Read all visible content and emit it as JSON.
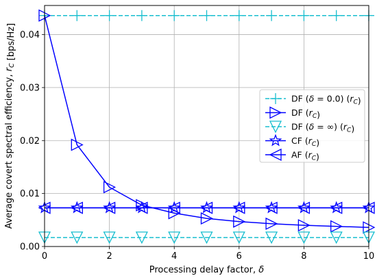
{
  "chart_data": {
    "type": "line",
    "xlabel": "Processing delay factor, δ",
    "ylabel": "Average covert spectral efficiency, r_C [bps/Hz]",
    "xlim": [
      0,
      10
    ],
    "ylim": [
      0,
      0.0455
    ],
    "xticks": [
      0,
      2,
      4,
      6,
      8,
      10
    ],
    "yticks": [
      0.0,
      0.01,
      0.02,
      0.03,
      0.04
    ],
    "ytick_labels": [
      "0.00",
      "0.01",
      "0.02",
      "0.03",
      "0.04"
    ],
    "grid": true,
    "legend_position": "center-right",
    "series": [
      {
        "name": "DF (δ = 0.0) (r_C)",
        "color": "#17becf",
        "line": "dashed",
        "marker": "plus",
        "x": [
          0,
          1,
          2,
          3,
          4,
          5,
          6,
          7,
          8,
          9,
          10
        ],
        "y": [
          0.0436,
          0.0436,
          0.0436,
          0.0436,
          0.0436,
          0.0436,
          0.0436,
          0.0436,
          0.0436,
          0.0436,
          0.0436
        ]
      },
      {
        "name": "DF (r_C)",
        "color": "#0000ff",
        "line": "solid",
        "marker": "triangle-right",
        "x": [
          0,
          1,
          2,
          3,
          4,
          5,
          6,
          7,
          8,
          9,
          10
        ],
        "y": [
          0.0436,
          0.0192,
          0.0112,
          0.0078,
          0.0063,
          0.0053,
          0.0047,
          0.0043,
          0.004,
          0.0038,
          0.0036
        ]
      },
      {
        "name": "DF (δ = ∞) (r_C)",
        "color": "#17becf",
        "line": "dashed",
        "marker": "triangle-down",
        "x": [
          0,
          1,
          2,
          3,
          4,
          5,
          6,
          7,
          8,
          9,
          10
        ],
        "y": [
          0.0017,
          0.0017,
          0.0017,
          0.0017,
          0.0017,
          0.0017,
          0.0017,
          0.0017,
          0.0017,
          0.0017,
          0.0017
        ]
      },
      {
        "name": "CF (r_C)",
        "color": "#0000ff",
        "line": "solid",
        "marker": "star",
        "x": [
          0,
          1,
          2,
          3,
          4,
          5,
          6,
          7,
          8,
          9,
          10
        ],
        "y": [
          0.0073,
          0.0073,
          0.0073,
          0.0073,
          0.0073,
          0.0073,
          0.0073,
          0.0073,
          0.0073,
          0.0073,
          0.0073
        ]
      },
      {
        "name": "AF (r_C)",
        "color": "#0000ff",
        "line": "solid",
        "marker": "triangle-left",
        "x": [
          0,
          1,
          2,
          3,
          4,
          5,
          6,
          7,
          8,
          9,
          10
        ],
        "y": [
          0.0073,
          0.0073,
          0.0073,
          0.0073,
          0.0073,
          0.0073,
          0.0073,
          0.0073,
          0.0073,
          0.0073,
          0.0073
        ]
      }
    ]
  }
}
